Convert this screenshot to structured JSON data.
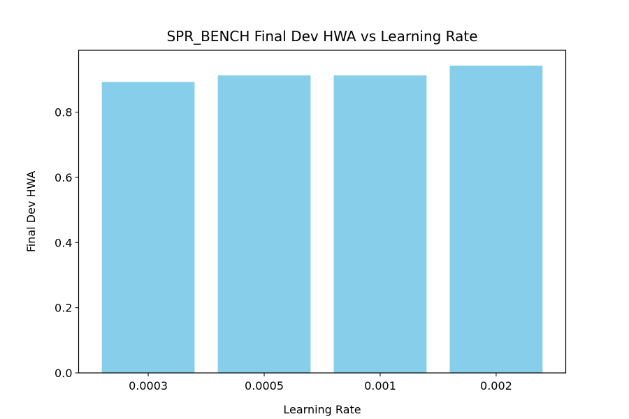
{
  "chart_data": {
    "type": "bar",
    "title": "SPR_BENCH Final Dev HWA vs Learning Rate",
    "xlabel": "Learning Rate",
    "ylabel": "Final Dev HWA",
    "categories": [
      "0.0003",
      "0.0005",
      "0.001",
      "0.002"
    ],
    "values": [
      0.893,
      0.913,
      0.913,
      0.943
    ],
    "ylim": [
      0.0,
      0.99
    ],
    "yticks": [
      0.0,
      0.2,
      0.4,
      0.6,
      0.8
    ],
    "ytick_labels": [
      "0.0",
      "0.2",
      "0.4",
      "0.6",
      "0.8"
    ],
    "grid": false,
    "bar_color": "#87CEEB"
  }
}
